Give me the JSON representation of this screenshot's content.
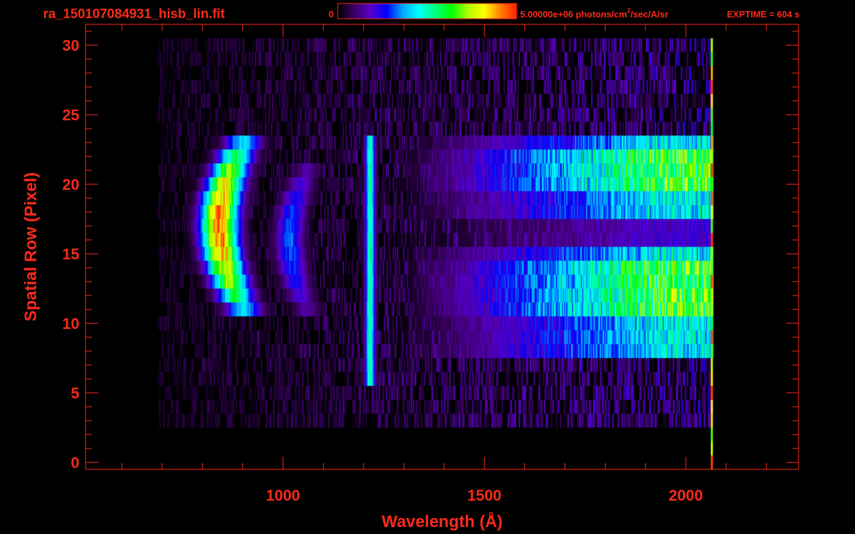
{
  "header": {
    "filename": "ra_150107084931_hisb_lin.fit",
    "colorbar_min": "0",
    "colorbar_max_value": "5.00000e+06",
    "colorbar_unit_a": " photons/cm",
    "colorbar_unit_sup": "2",
    "colorbar_unit_b": "/sec/A/sr",
    "exptime": "EXPTIME = 604 s"
  },
  "colors": {
    "text": "#ff2a1a",
    "axis": "#ff2a1a",
    "background": "#000000"
  },
  "colorbar": {
    "stops": [
      "#000000",
      "#3a0060",
      "#5a00c8",
      "#0000ff",
      "#00a8ff",
      "#00ffff",
      "#00ff80",
      "#00ff00",
      "#b0ff00",
      "#ffff00",
      "#ff8000",
      "#ff2000"
    ]
  },
  "chart_data": {
    "type": "heatmap",
    "title": "ra_150107084931_hisb_lin.fit",
    "xlabel": "Wavelength (Å)",
    "ylabel": "Spatial Row (Pixel)",
    "xlim": [
      510,
      2280
    ],
    "ylim": [
      -0.5,
      31.5
    ],
    "xticks": [
      1000,
      1500,
      2000
    ],
    "yticks": [
      0,
      5,
      10,
      15,
      20,
      25,
      30
    ],
    "x_minor_step": 100,
    "y_minor_step": 1,
    "value_range": [
      0,
      5000000
    ],
    "data_x_range": [
      690,
      2065
    ],
    "data_rows": [
      0,
      30
    ],
    "features": [
      {
        "type": "band",
        "x_center": 840,
        "x_width": 45,
        "rows": [
          11,
          23
        ],
        "peak_row": 17,
        "level": 1.0,
        "curve": 0.85,
        "note": "curved emission"
      },
      {
        "type": "band",
        "x_center": 1015,
        "x_width": 35,
        "rows": [
          11,
          21
        ],
        "peak_row": 16,
        "level": 0.35,
        "curve": 0.6,
        "note": "curved emission"
      },
      {
        "type": "line",
        "x_center": 1215,
        "x_width": 12,
        "rows": [
          6,
          23
        ],
        "level": 0.55,
        "note": "Lyman alpha"
      },
      {
        "type": "continuum",
        "x_start": 1500,
        "x_end": 2060,
        "rows": [
          8,
          23
        ],
        "level": 0.75
      },
      {
        "type": "noise",
        "x_start": 690,
        "x_end": 2065,
        "rows": [
          3,
          30
        ],
        "level": 0.12
      }
    ]
  }
}
